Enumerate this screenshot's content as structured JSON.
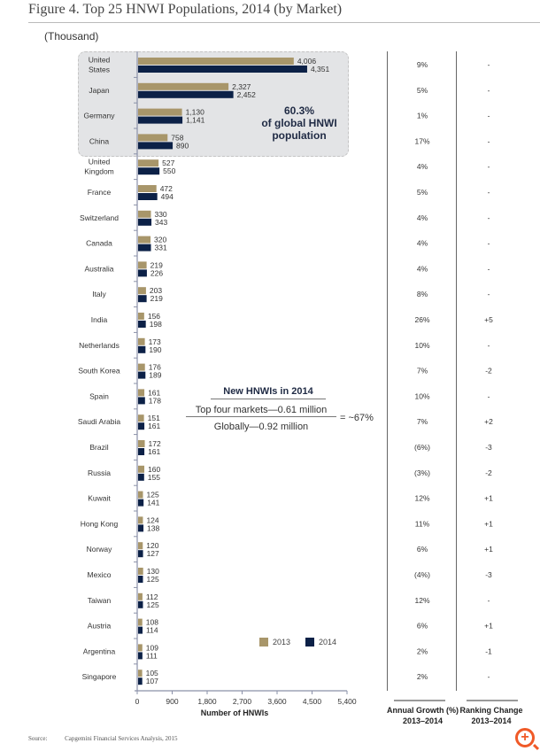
{
  "title": "Figure 4. Top 25 HNWI Populations, 2014 (by Market)",
  "unit": "(Thousand)",
  "highlight": {
    "line1": "60.3%",
    "line2": "of global HNWI",
    "line3": "population"
  },
  "annotation": {
    "heading": "New HNWIs in 2014",
    "numerator": "Top four markets—0.61 million",
    "denominator": "Globally—0.92 million",
    "result": "= ~67%"
  },
  "growth_header": {
    "line1": "Annual Growth (%)",
    "line2": "2013–2014"
  },
  "ranking_header": {
    "line1": "Ranking Change",
    "line2": "2013–2014"
  },
  "source": {
    "label": "Source:",
    "text": "Capgemini Financial Services Analysis, 2015"
  },
  "colors": {
    "2013": "#a8966a",
    "2014": "#0c2147",
    "negative": "#d9382c",
    "positive": "#4c9a2a"
  },
  "zoom_icon": "zoom-in-icon",
  "chart_data": {
    "type": "bar",
    "orientation": "horizontal",
    "xlabel": "Number of HNWIs",
    "xlim": [
      0,
      5400
    ],
    "xticks": [
      "0",
      "900",
      "1,800",
      "2,700",
      "3,600",
      "4,500",
      "5,400"
    ],
    "legend_position": "bottom-right",
    "categories": [
      "United States",
      "Japan",
      "Germany",
      "China",
      "United Kingdom",
      "France",
      "Switzerland",
      "Canada",
      "Australia",
      "Italy",
      "India",
      "Netherlands",
      "South Korea",
      "Spain",
      "Saudi Arabia",
      "Brazil",
      "Russia",
      "Kuwait",
      "Hong Kong",
      "Norway",
      "Mexico",
      "Taiwan",
      "Austria",
      "Argentina",
      "Singapore"
    ],
    "category_lines": [
      [
        "United",
        "States"
      ],
      [
        "Japan"
      ],
      [
        "Germany"
      ],
      [
        "China"
      ],
      [
        "United",
        "Kingdom"
      ],
      [
        "France"
      ],
      [
        "Switzerland"
      ],
      [
        "Canada"
      ],
      [
        "Australia"
      ],
      [
        "Italy"
      ],
      [
        "India"
      ],
      [
        "Netherlands"
      ],
      [
        "South Korea"
      ],
      [
        "Spain"
      ],
      [
        "Saudi Arabia"
      ],
      [
        "Brazil"
      ],
      [
        "Russia"
      ],
      [
        "Kuwait"
      ],
      [
        "Hong Kong"
      ],
      [
        "Norway"
      ],
      [
        "Mexico"
      ],
      [
        "Taiwan"
      ],
      [
        "Austria"
      ],
      [
        "Argentina"
      ],
      [
        "Singapore"
      ]
    ],
    "series": [
      {
        "name": "2013",
        "values": [
          4006,
          2327,
          1130,
          758,
          527,
          472,
          330,
          320,
          219,
          203,
          156,
          173,
          176,
          161,
          151,
          172,
          160,
          125,
          124,
          120,
          130,
          112,
          108,
          109,
          105
        ],
        "labels": [
          "4,006",
          "2,327",
          "1,130",
          "758",
          "527",
          "472",
          "330",
          "320",
          "219",
          "203",
          "156",
          "173",
          "176",
          "161",
          "151",
          "172",
          "160",
          "125",
          "124",
          "120",
          "130",
          "112",
          "108",
          "109",
          "105"
        ]
      },
      {
        "name": "2014",
        "values": [
          4351,
          2452,
          1141,
          890,
          550,
          494,
          343,
          331,
          226,
          219,
          198,
          190,
          189,
          178,
          161,
          161,
          155,
          141,
          138,
          127,
          125,
          125,
          114,
          111,
          107
        ],
        "labels": [
          "4,351",
          "2,452",
          "1,141",
          "890",
          "550",
          "494",
          "343",
          "331",
          "226",
          "219",
          "198",
          "190",
          "189",
          "178",
          "161",
          "161",
          "155",
          "141",
          "138",
          "127",
          "125",
          "125",
          "114",
          "111",
          "107"
        ]
      }
    ],
    "annual_growth": [
      "9%",
      "5%",
      "1%",
      "17%",
      "4%",
      "5%",
      "4%",
      "4%",
      "4%",
      "8%",
      "26%",
      "10%",
      "7%",
      "10%",
      "7%",
      "(6%)",
      "(3%)",
      "12%",
      "11%",
      "6%",
      "(4%)",
      "12%",
      "6%",
      "2%",
      "2%"
    ],
    "ranking_change": [
      "-",
      "-",
      "-",
      "-",
      "-",
      "-",
      "-",
      "-",
      "-",
      "-",
      "+5",
      "-",
      "-2",
      "-",
      "+2",
      "-3",
      "-2",
      "+1",
      "+1",
      "+1",
      "-3",
      "-",
      "+1",
      "-1",
      "-"
    ]
  }
}
